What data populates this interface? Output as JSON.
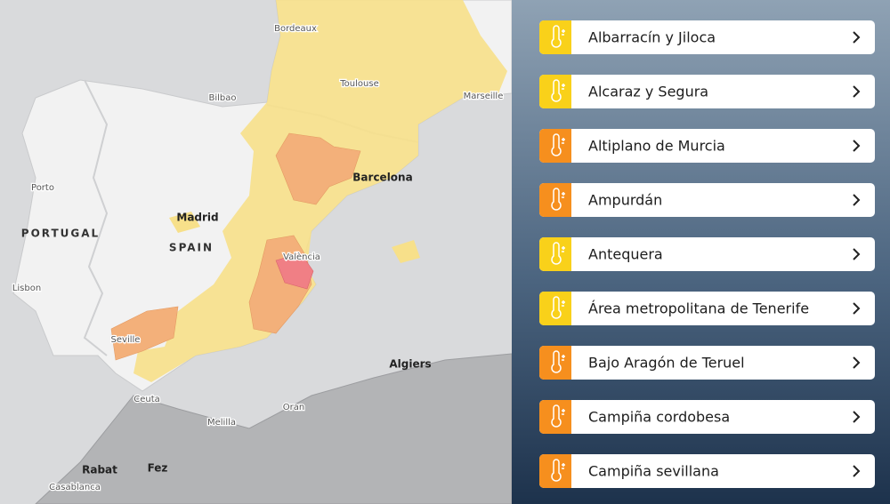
{
  "map": {
    "labels": [
      "Bordeaux",
      "Toulouse",
      "Marseille",
      "Bilbao",
      "Barcelona",
      "Porto",
      "Madrid",
      "PORTUGAL",
      "SPAIN",
      "València",
      "Lisbon",
      "Seville",
      "Algiers",
      "Ceuta",
      "Oran",
      "Melilla",
      "Rabat",
      "Fez",
      "Casablanca"
    ]
  },
  "alerts": [
    {
      "name": "Albarracín y Jiloca",
      "color": "#f9d11a"
    },
    {
      "name": "Alcaraz y Segura",
      "color": "#f9d11a"
    },
    {
      "name": "Altiplano de Murcia",
      "color": "#f68f1e"
    },
    {
      "name": "Ampurdán",
      "color": "#f68f1e"
    },
    {
      "name": "Antequera",
      "color": "#f9d11a"
    },
    {
      "name": "Área metropolitana de Tenerife",
      "color": "#f9d11a"
    },
    {
      "name": "Bajo Aragón de Teruel",
      "color": "#f68f1e"
    },
    {
      "name": "Campiña cordobesa",
      "color": "#f68f1e"
    },
    {
      "name": "Campiña sevillana",
      "color": "#f68f1e"
    }
  ]
}
